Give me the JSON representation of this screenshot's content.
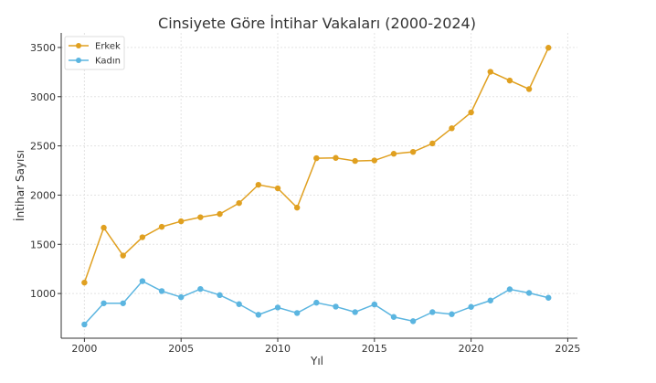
{
  "chart_data": {
    "type": "line",
    "title": "Cinsiyete Göre İntihar Vakaları (2000-2024)",
    "xlabel": "Yıl",
    "ylabel": "İntihar Sayısı",
    "xlim": [
      1998.8,
      2025.5
    ],
    "ylim": [
      546,
      3648
    ],
    "xticks": [
      2000,
      2005,
      2010,
      2015,
      2020,
      2025
    ],
    "yticks": [
      1000,
      1500,
      2000,
      2500,
      3000,
      3500
    ],
    "grid": true,
    "legend_position": "top-left",
    "x": [
      2000,
      2001,
      2002,
      2003,
      2004,
      2005,
      2006,
      2007,
      2008,
      2009,
      2010,
      2011,
      2012,
      2013,
      2014,
      2015,
      2016,
      2017,
      2018,
      2019,
      2020,
      2021,
      2022,
      2023,
      2024
    ],
    "series": [
      {
        "name": "Erkek",
        "color": "#E0A020",
        "values": [
          1111,
          1669,
          1386,
          1572,
          1678,
          1734,
          1775,
          1808,
          1919,
          2105,
          2069,
          1873,
          2375,
          2378,
          2347,
          2352,
          2420,
          2439,
          2525,
          2679,
          2840,
          3253,
          3164,
          3077,
          3497
        ]
      },
      {
        "name": "Kadın",
        "color": "#5BB5E0",
        "values": [
          686,
          901,
          901,
          1126,
          1025,
          963,
          1046,
          984,
          892,
          784,
          858,
          802,
          907,
          867,
          811,
          889,
          762,
          719,
          811,
          790,
          864,
          929,
          1043,
          1006,
          957
        ]
      }
    ]
  }
}
